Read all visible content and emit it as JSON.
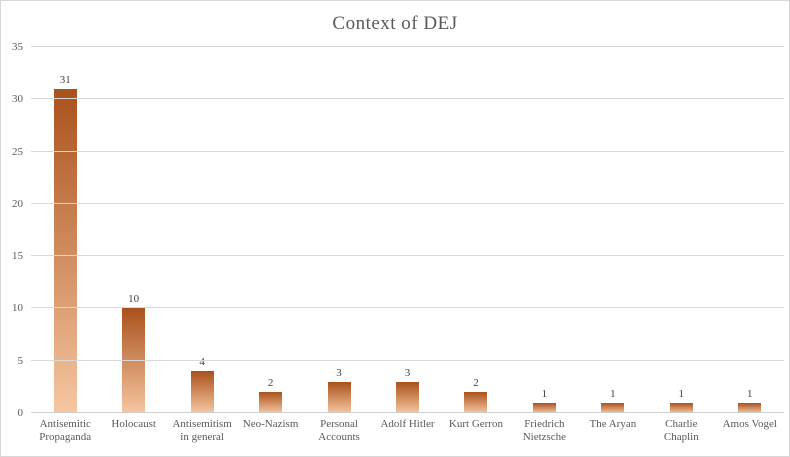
{
  "chart_data": {
    "type": "bar",
    "title": "Context of DEJ",
    "categories": [
      "Antisemitic Propaganda",
      "Holocaust",
      "Antisemitism in general",
      "Neo-Nazism",
      "Personal Accounts",
      "Adolf Hitler",
      "Kurt Gerron",
      "Friedrich Nietzsche",
      "The Aryan",
      "Charlie Chaplin",
      "Amos Vogel"
    ],
    "values": [
      31,
      10,
      4,
      2,
      3,
      3,
      2,
      1,
      1,
      1,
      1
    ],
    "value_labels": [
      "31",
      "10",
      "4",
      "2",
      "3",
      "3",
      "2",
      "1",
      "1",
      "1",
      "1"
    ],
    "xlabel": "",
    "ylabel": "",
    "ylim": [
      0,
      35
    ],
    "ytick_step": 5,
    "ytick_labels": [
      "0",
      "5",
      "10",
      "15",
      "20",
      "25",
      "30",
      "35"
    ],
    "grid": true,
    "legend_position": "none",
    "colors": {
      "bar_gradient_top": "#a9511b",
      "bar_gradient_bottom": "#f6c6a1",
      "gridline": "#d9d9d9",
      "axis_line": "#d0d0d0",
      "title_text": "#595959",
      "tick_text": "#595959",
      "value_label_text": "#404040",
      "background": "#ffffff",
      "border": "#d7d7d7"
    }
  }
}
